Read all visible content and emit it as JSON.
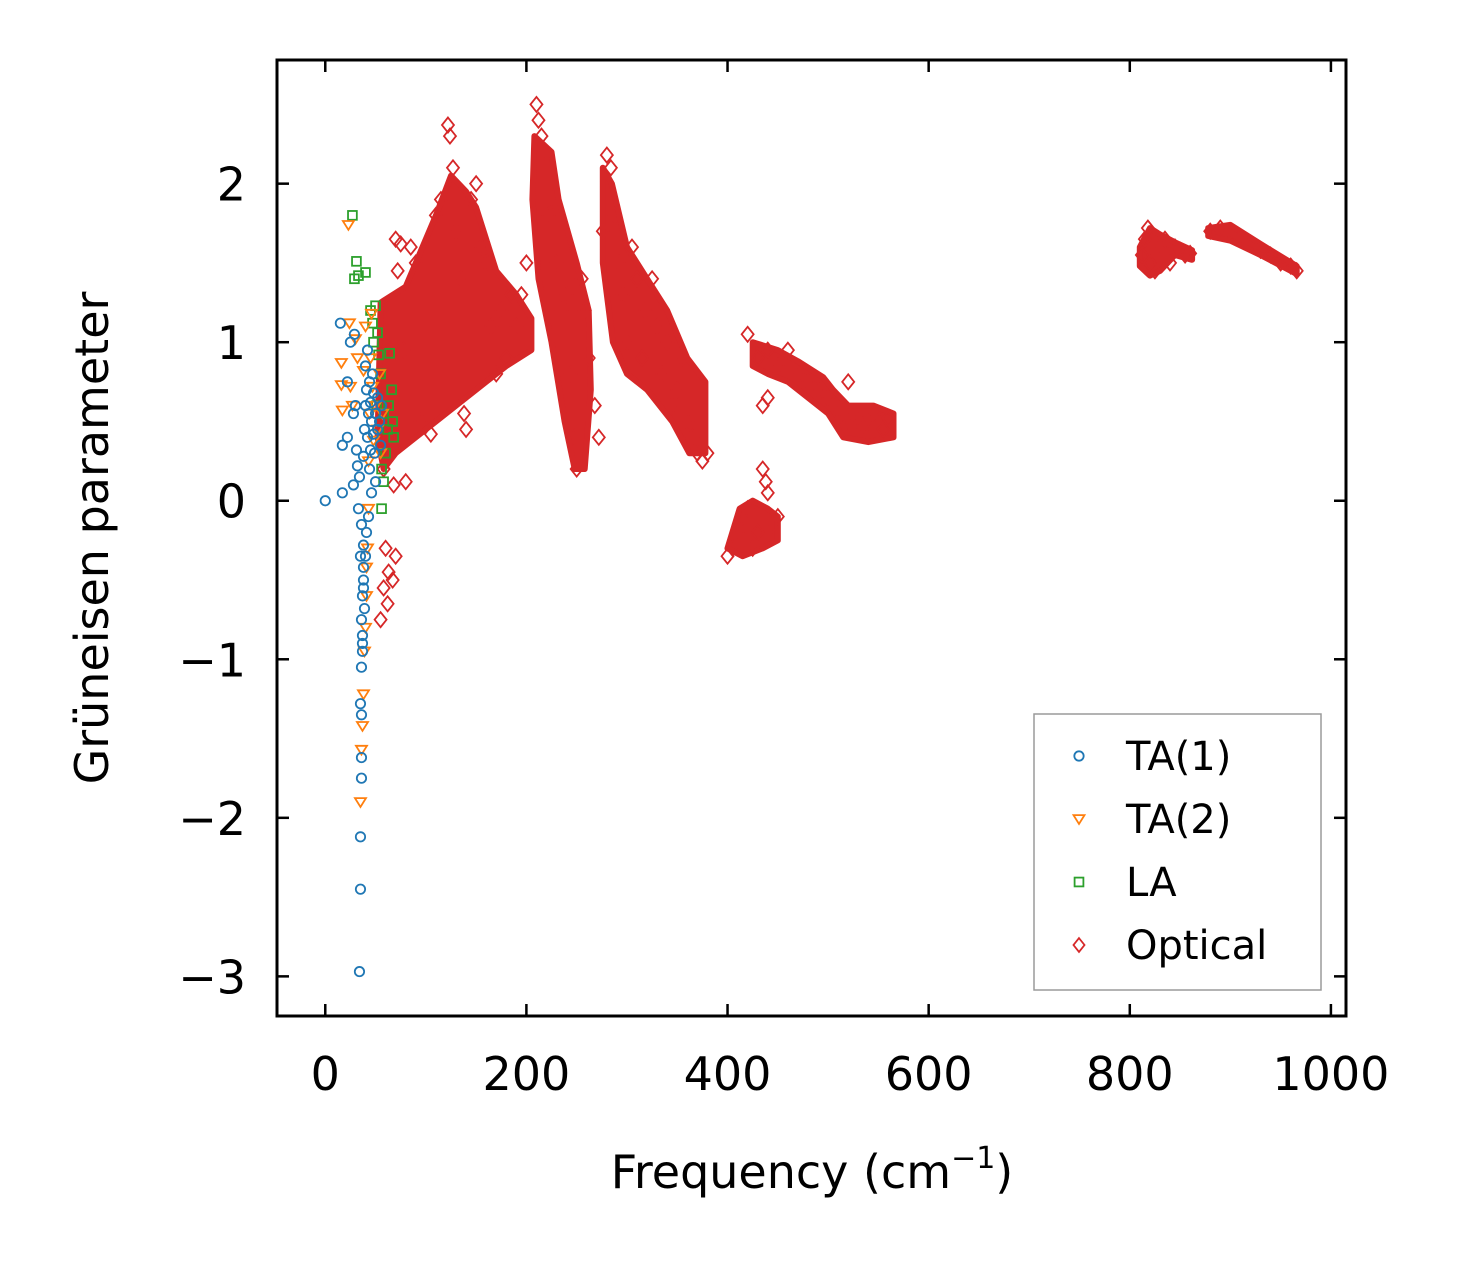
{
  "chart_data": {
    "type": "scatter",
    "title": "",
    "xlabel": "Frequency (cm",
    "xlabel_sup": "−1",
    "xlabel_close": ")",
    "ylabel": "Grüneisen parameter",
    "xlim": [
      -48,
      1015
    ],
    "ylim": [
      -3.25,
      2.78
    ],
    "xticks": [
      0,
      200,
      400,
      600,
      800,
      1000
    ],
    "xtick_labels": [
      "0",
      "200",
      "400",
      "600",
      "800",
      "1000"
    ],
    "yticks": [
      -3,
      -2,
      -1,
      0,
      1,
      2
    ],
    "ytick_labels": [
      "−3",
      "−2",
      "−1",
      "0",
      "1",
      "2"
    ],
    "grid": false,
    "legend_position": "lower-right",
    "series": [
      {
        "name": "TA(1)",
        "marker": "circle",
        "color": "#1f77b4",
        "points": [
          [
            0,
            0.0
          ],
          [
            15,
            1.12
          ],
          [
            17,
            0.05
          ],
          [
            17,
            0.35
          ],
          [
            22,
            0.75
          ],
          [
            22,
            0.4
          ],
          [
            25,
            1.0
          ],
          [
            28,
            0.1
          ],
          [
            28,
            0.55
          ],
          [
            29,
            1.05
          ],
          [
            30,
            0.6
          ],
          [
            31,
            0.32
          ],
          [
            32,
            0.22
          ],
          [
            33,
            -0.05
          ],
          [
            34,
            0.15
          ],
          [
            34,
            -2.97
          ],
          [
            35,
            -0.35
          ],
          [
            35,
            -2.45
          ],
          [
            35,
            -2.12
          ],
          [
            36,
            -1.75
          ],
          [
            36,
            -1.62
          ],
          [
            36,
            -1.35
          ],
          [
            35,
            -1.28
          ],
          [
            36,
            -1.05
          ],
          [
            37,
            -0.9
          ],
          [
            36,
            -0.75
          ],
          [
            37,
            -0.6
          ],
          [
            38,
            -0.5
          ],
          [
            38,
            -0.42
          ],
          [
            38,
            -0.28
          ],
          [
            36,
            -0.15
          ],
          [
            38,
            0.28
          ],
          [
            39,
            0.45
          ],
          [
            40,
            0.6
          ],
          [
            40,
            0.85
          ],
          [
            41,
            0.7
          ],
          [
            42,
            0.95
          ],
          [
            42,
            0.4
          ],
          [
            43,
            0.55
          ],
          [
            44,
            0.2
          ],
          [
            44,
            0.75
          ],
          [
            45,
            0.62
          ],
          [
            45,
            0.32
          ],
          [
            46,
            0.5
          ],
          [
            46,
            0.05
          ],
          [
            47,
            0.8
          ],
          [
            48,
            0.68
          ],
          [
            48,
            0.42
          ],
          [
            49,
            0.3
          ],
          [
            50,
            0.55
          ],
          [
            50,
            0.12
          ],
          [
            52,
            0.65
          ],
          [
            52,
            0.45
          ],
          [
            54,
            0.5
          ],
          [
            55,
            0.35
          ],
          [
            56,
            0.6
          ],
          [
            38,
            -0.55
          ],
          [
            39,
            -0.68
          ],
          [
            37,
            -0.95
          ],
          [
            37,
            -0.85
          ],
          [
            40,
            -0.35
          ],
          [
            41,
            -0.2
          ],
          [
            43,
            -0.1
          ]
        ]
      },
      {
        "name": "TA(2)",
        "marker": "triangle-down",
        "color": "#ff7f0e",
        "points": [
          [
            23,
            1.74
          ],
          [
            16,
            0.87
          ],
          [
            16,
            0.73
          ],
          [
            17,
            0.57
          ],
          [
            24,
            1.12
          ],
          [
            25,
            0.72
          ],
          [
            27,
            0.6
          ],
          [
            30,
            1.02
          ],
          [
            32,
            0.9
          ],
          [
            35,
            -1.9
          ],
          [
            36,
            -1.57
          ],
          [
            37,
            -1.42
          ],
          [
            38,
            -1.22
          ],
          [
            39,
            -0.95
          ],
          [
            40,
            -0.8
          ],
          [
            41,
            -0.6
          ],
          [
            41,
            -0.42
          ],
          [
            42,
            -0.3
          ],
          [
            43,
            -0.05
          ],
          [
            43,
            0.25
          ],
          [
            44,
            0.55
          ],
          [
            45,
            0.9
          ],
          [
            46,
            1.18
          ],
          [
            47,
            0.72
          ],
          [
            48,
            0.38
          ],
          [
            50,
            0.6
          ],
          [
            52,
            0.45
          ],
          [
            54,
            0.8
          ],
          [
            55,
            0.3
          ],
          [
            57,
            0.55
          ],
          [
            40,
            1.1
          ],
          [
            38,
            0.82
          ]
        ]
      },
      {
        "name": "LA",
        "marker": "square",
        "color": "#2ca02c",
        "points": [
          [
            27,
            1.8
          ],
          [
            29,
            1.4
          ],
          [
            31,
            1.51
          ],
          [
            33,
            1.42
          ],
          [
            40,
            1.44
          ],
          [
            45,
            1.2
          ],
          [
            47,
            1.12
          ],
          [
            48,
            1.0
          ],
          [
            50,
            1.23
          ],
          [
            52,
            1.06
          ],
          [
            55,
            0.8
          ],
          [
            56,
            0.2
          ],
          [
            58,
            0.55
          ],
          [
            60,
            0.3
          ],
          [
            62,
            0.45
          ],
          [
            64,
            0.93
          ],
          [
            66,
            0.7
          ],
          [
            68,
            0.4
          ],
          [
            56,
            -0.05
          ],
          [
            58,
            0.12
          ],
          [
            53,
            0.92
          ],
          [
            51,
            0.6
          ],
          [
            63,
            0.6
          ],
          [
            67,
            0.5
          ]
        ]
      },
      {
        "name": "Optical",
        "marker": "diamond",
        "color": "#d62728",
        "points": [
          [
            55,
            0.45
          ],
          [
            58,
            0.2
          ],
          [
            60,
            -0.3
          ],
          [
            62,
            -0.65
          ],
          [
            55,
            -0.75
          ],
          [
            58,
            -0.55
          ],
          [
            63,
            -0.45
          ],
          [
            67,
            -0.5
          ],
          [
            70,
            -0.35
          ],
          [
            68,
            0.1
          ],
          [
            72,
            1.45
          ],
          [
            75,
            1.62
          ],
          [
            70,
            1.65
          ],
          [
            85,
            1.6
          ],
          [
            78,
            0.95
          ],
          [
            80,
            0.12
          ],
          [
            90,
            1.5
          ],
          [
            95,
            0.5
          ],
          [
            105,
            0.42
          ],
          [
            110,
            1.8
          ],
          [
            115,
            1.9
          ],
          [
            122,
            2.37
          ],
          [
            124,
            2.3
          ],
          [
            127,
            2.1
          ],
          [
            130,
            1.7
          ],
          [
            135,
            1.4
          ],
          [
            138,
            0.55
          ],
          [
            140,
            0.45
          ],
          [
            145,
            1.9
          ],
          [
            150,
            2.0
          ],
          [
            155,
            1.6
          ],
          [
            160,
            1.5
          ],
          [
            165,
            1.1
          ],
          [
            170,
            0.8
          ],
          [
            175,
            1.2
          ],
          [
            180,
            0.9
          ],
          [
            185,
            1.3
          ],
          [
            190,
            1.1
          ],
          [
            195,
            1.3
          ],
          [
            200,
            1.5
          ],
          [
            210,
            2.5
          ],
          [
            212,
            2.4
          ],
          [
            215,
            2.3
          ],
          [
            218,
            2.2
          ],
          [
            222,
            1.8
          ],
          [
            226,
            1.9
          ],
          [
            230,
            1.5
          ],
          [
            235,
            1.2
          ],
          [
            240,
            1.3
          ],
          [
            244,
            0.8
          ],
          [
            248,
            0.4
          ],
          [
            250,
            0.2
          ],
          [
            255,
            1.4
          ],
          [
            258,
            1.2
          ],
          [
            262,
            0.9
          ],
          [
            268,
            0.6
          ],
          [
            272,
            0.4
          ],
          [
            276,
            1.7
          ],
          [
            280,
            2.18
          ],
          [
            284,
            2.1
          ],
          [
            288,
            1.8
          ],
          [
            292,
            1.5
          ],
          [
            296,
            1.3
          ],
          [
            300,
            1.0
          ],
          [
            305,
            1.6
          ],
          [
            310,
            1.4
          ],
          [
            315,
            0.9
          ],
          [
            318,
            1.2
          ],
          [
            325,
            1.4
          ],
          [
            330,
            1.1
          ],
          [
            335,
            0.8
          ],
          [
            340,
            1.0
          ],
          [
            345,
            0.6
          ],
          [
            350,
            0.7
          ],
          [
            355,
            0.9
          ],
          [
            360,
            0.5
          ],
          [
            365,
            0.4
          ],
          [
            370,
            0.3
          ],
          [
            375,
            0.25
          ],
          [
            380,
            0.3
          ],
          [
            400,
            -0.35
          ],
          [
            405,
            -0.3
          ],
          [
            410,
            -0.2
          ],
          [
            415,
            -0.1
          ],
          [
            420,
            -0.05
          ],
          [
            425,
            -0.3
          ],
          [
            430,
            -0.2
          ],
          [
            435,
            0.2
          ],
          [
            438,
            0.12
          ],
          [
            440,
            0.05
          ],
          [
            445,
            -0.15
          ],
          [
            450,
            -0.1
          ],
          [
            420,
            1.05
          ],
          [
            430,
            0.9
          ],
          [
            440,
            0.95
          ],
          [
            450,
            0.85
          ],
          [
            460,
            0.95
          ],
          [
            470,
            0.8
          ],
          [
            480,
            0.75
          ],
          [
            490,
            0.7
          ],
          [
            500,
            0.65
          ],
          [
            505,
            0.6
          ],
          [
            510,
            0.5
          ],
          [
            515,
            0.45
          ],
          [
            520,
            0.75
          ],
          [
            525,
            0.55
          ],
          [
            530,
            0.5
          ],
          [
            535,
            0.48
          ],
          [
            540,
            0.5
          ],
          [
            545,
            0.55
          ],
          [
            550,
            0.5
          ],
          [
            555,
            0.45
          ],
          [
            560,
            0.52
          ],
          [
            435,
            0.6
          ],
          [
            440,
            0.65
          ],
          [
            812,
            1.55
          ],
          [
            815,
            1.65
          ],
          [
            818,
            1.72
          ],
          [
            820,
            1.5
          ],
          [
            825,
            1.45
          ],
          [
            830,
            1.6
          ],
          [
            835,
            1.65
          ],
          [
            840,
            1.5
          ],
          [
            845,
            1.6
          ],
          [
            850,
            1.58
          ],
          [
            855,
            1.55
          ],
          [
            860,
            1.56
          ],
          [
            880,
            1.7
          ],
          [
            890,
            1.72
          ],
          [
            900,
            1.7
          ],
          [
            910,
            1.65
          ],
          [
            920,
            1.62
          ],
          [
            930,
            1.58
          ],
          [
            940,
            1.55
          ],
          [
            950,
            1.5
          ],
          [
            960,
            1.48
          ],
          [
            966,
            1.45
          ]
        ]
      }
    ]
  }
}
